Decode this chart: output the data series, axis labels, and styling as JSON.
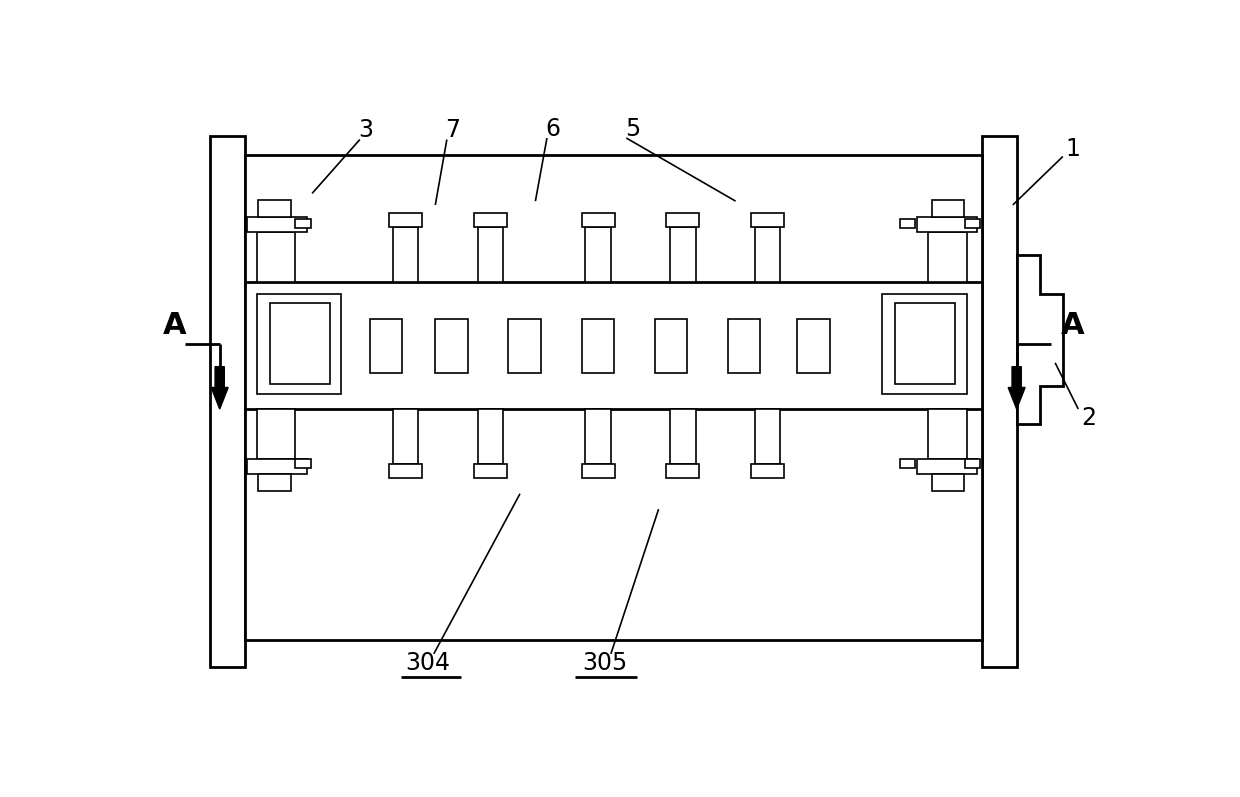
{
  "bg_color": "#ffffff",
  "lc": "#000000",
  "lw": 1.2,
  "lw2": 2.0,
  "fig_w": 12.4,
  "fig_h": 7.97,
  "xmin": 0,
  "xmax": 1240,
  "ymin": 0,
  "ymax": 797
}
